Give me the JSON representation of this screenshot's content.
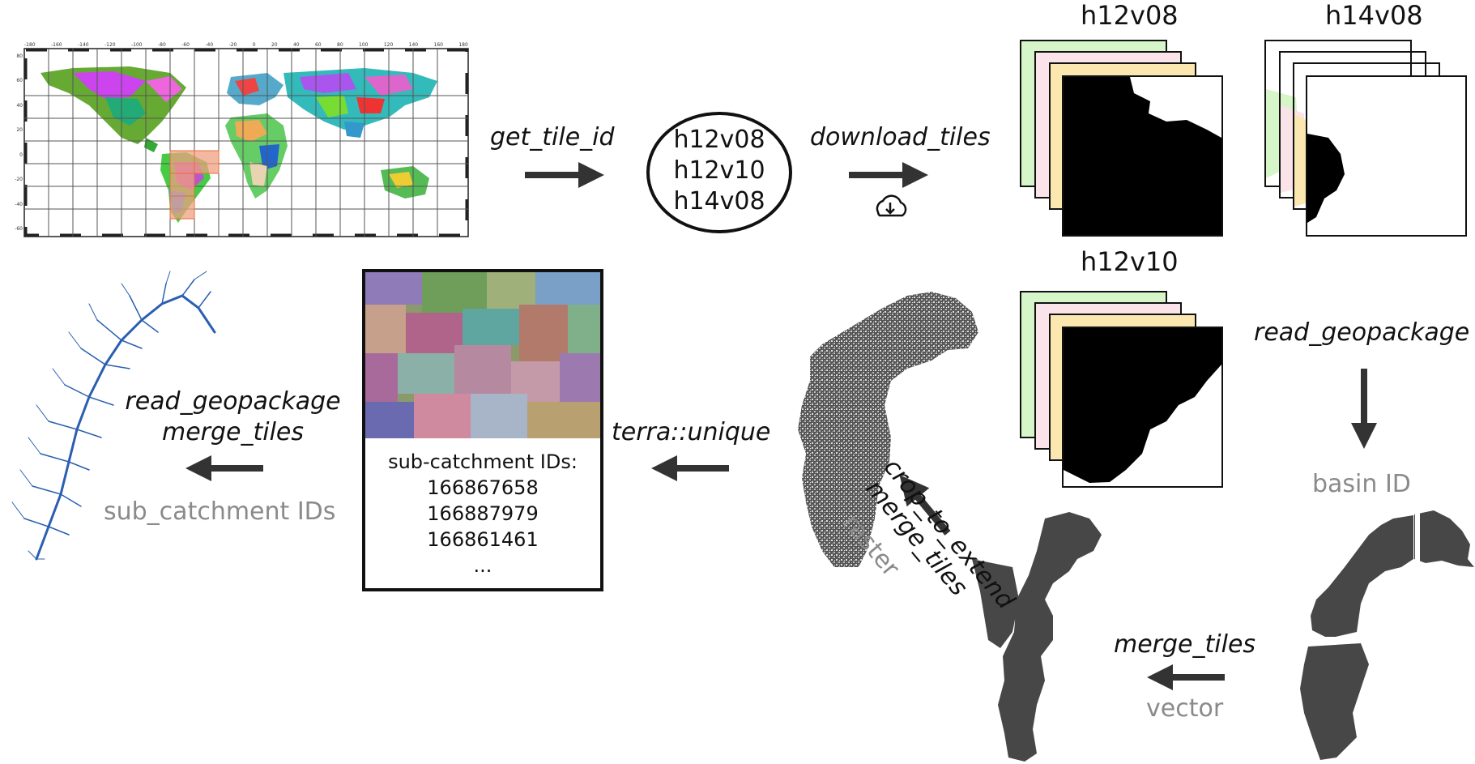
{
  "steps": {
    "get_tile_id": "get_tile_id",
    "download_tiles": "download_tiles",
    "read_geopackage_right": "read_geopackage",
    "basin_id": "basin ID",
    "merge_tiles_bottom": "merge_tiles",
    "vector": "vector",
    "crop_to_extend": "crop_to_extend",
    "merge_tiles_diag": "merge_tiles",
    "raster": "raster",
    "terra_unique": "terra::unique",
    "read_geopackage_left": "read_geopackage",
    "merge_tiles_left": "merge_tiles",
    "sub_catchment_ids": "sub_catchment IDs"
  },
  "tile_ids": [
    "h12v08",
    "h12v10",
    "h14v08"
  ],
  "tile_titles": {
    "a": "h12v08",
    "b": "h14v08",
    "c": "h12v10"
  },
  "id_box": {
    "header": "sub-catchment IDs:",
    "ids": [
      "166867658",
      "166887979",
      "166861461"
    ],
    "ellipsis": "..."
  },
  "world_map": {
    "lon_ticks": [
      "-180",
      "-160",
      "-140",
      "-120",
      "-100",
      "-80",
      "-60",
      "-40",
      "-20",
      "0",
      "20",
      "40",
      "60",
      "80",
      "100",
      "120",
      "140",
      "160",
      "180"
    ],
    "lat_ticks": [
      "80",
      "60",
      "40",
      "20",
      "0",
      "-20",
      "-40",
      "-60"
    ]
  },
  "icons": {
    "cloud": "cloud-download-icon"
  },
  "colors": {
    "arrow": "#333333",
    "gray_text": "#8a8a8a",
    "tile_green": "#d6f5c8",
    "tile_pink": "#fbe3ea",
    "tile_yellow": "#fbe7b0",
    "highlight": "#f0a080",
    "basin": "#474747",
    "stream": "#2a5fb0"
  }
}
